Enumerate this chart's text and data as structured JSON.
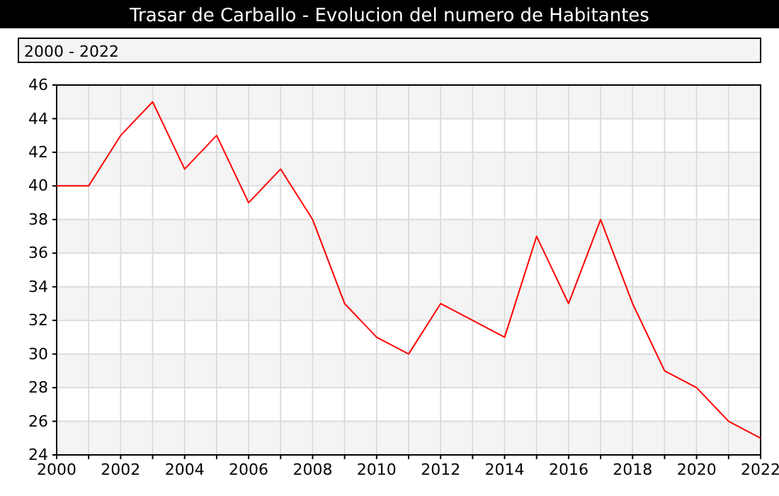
{
  "chart_data": {
    "type": "line",
    "title": "Trasar de Carballo - Evolucion del numero de Habitantes",
    "annotations": [
      "2000 - 2022"
    ],
    "x": [
      2000,
      2001,
      2002,
      2003,
      2004,
      2005,
      2006,
      2007,
      2008,
      2009,
      2010,
      2011,
      2012,
      2013,
      2014,
      2015,
      2016,
      2017,
      2018,
      2019,
      2020,
      2021,
      2022
    ],
    "series": [
      {
        "color": "#ff0000",
        "values": [
          40,
          40,
          43,
          45,
          41,
          43,
          39,
          41,
          38,
          33,
          31,
          30,
          33,
          32,
          31,
          37,
          33,
          38,
          33,
          29,
          28,
          26,
          25
        ]
      }
    ],
    "xlim": [
      2000,
      2022
    ],
    "xticks": [
      2000,
      {
        "value": 2001,
        "label": null
      },
      2002,
      {
        "value": 2003,
        "label": null
      },
      2004,
      {
        "value": 2005,
        "label": null
      },
      2006,
      {
        "value": 2007,
        "label": null
      },
      2008,
      {
        "value": 2009,
        "label": null
      },
      2010,
      {
        "value": 2011,
        "label": null
      },
      2012,
      {
        "value": 2013,
        "label": null
      },
      2014,
      {
        "value": 2015,
        "label": null
      },
      2016,
      {
        "value": 2017,
        "label": null
      },
      2018,
      {
        "value": 2019,
        "label": null
      },
      2020,
      {
        "value": 2021,
        "label": null
      },
      2022
    ],
    "ylim": [
      24,
      46
    ],
    "yticks": [
      24,
      26,
      28,
      30,
      32,
      34,
      36,
      38,
      40,
      42,
      44,
      46
    ],
    "grid": true,
    "marker": "none",
    "line_style": "solid"
  }
}
